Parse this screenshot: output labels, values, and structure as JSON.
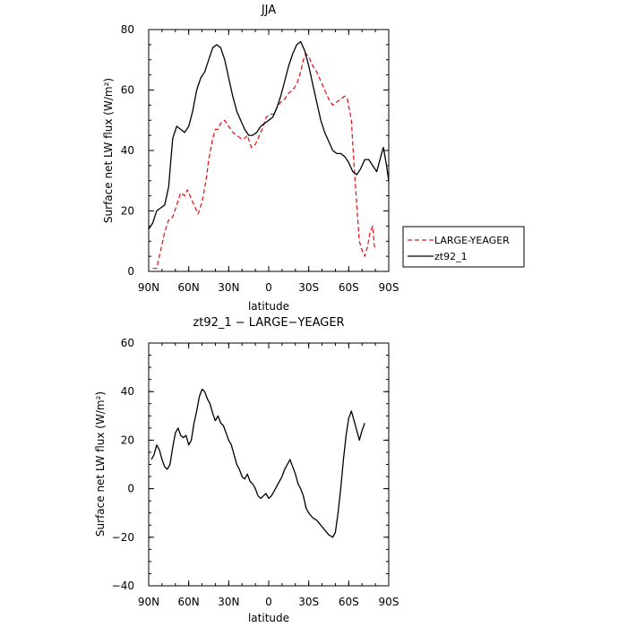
{
  "chart_data": [
    {
      "type": "line",
      "title": "JJA",
      "xlabel": "latitude",
      "ylabel": "Surface net LW flux (W/m²)",
      "xlim": [
        90,
        -90
      ],
      "ylim": [
        0,
        80
      ],
      "xtick_values": [
        90,
        60,
        30,
        0,
        -30,
        -60,
        -90
      ],
      "xtick_labels": [
        "90N",
        "60N",
        "30N",
        "0",
        "30S",
        "60S",
        "90S"
      ],
      "ytick_values": [
        0,
        20,
        40,
        60,
        80
      ],
      "ytick_labels": [
        "0",
        "20",
        "40",
        "60",
        "80"
      ],
      "legend_position": "outside-right",
      "series": [
        {
          "name": "LARGE-YEAGER",
          "color": "#e8191c",
          "style": "dashed",
          "points": [
            [
              87,
              1
            ],
            [
              84,
              1
            ],
            [
              81,
              7
            ],
            [
              78,
              13
            ],
            [
              75,
              17
            ],
            [
              72,
              18
            ],
            [
              69,
              22
            ],
            [
              66,
              26
            ],
            [
              63,
              25
            ],
            [
              61,
              27
            ],
            [
              58,
              24
            ],
            [
              55,
              21
            ],
            [
              53,
              19
            ],
            [
              50,
              23
            ],
            [
              47,
              30
            ],
            [
              45,
              37
            ],
            [
              42,
              44
            ],
            [
              40,
              47
            ],
            [
              38,
              47
            ],
            [
              36,
              49
            ],
            [
              33,
              50
            ],
            [
              30,
              48
            ],
            [
              27,
              46
            ],
            [
              24,
              45
            ],
            [
              21,
              44
            ],
            [
              18,
              44
            ],
            [
              16,
              45
            ],
            [
              13,
              41
            ],
            [
              10,
              42
            ],
            [
              7,
              45
            ],
            [
              4,
              48
            ],
            [
              2,
              51
            ],
            [
              -1,
              52
            ],
            [
              -4,
              52
            ],
            [
              -6,
              54
            ],
            [
              -9,
              56
            ],
            [
              -12,
              57
            ],
            [
              -15,
              59
            ],
            [
              -18,
              60
            ],
            [
              -21,
              62
            ],
            [
              -24,
              66
            ],
            [
              -26,
              70
            ],
            [
              -28,
              72
            ],
            [
              -30,
              71
            ],
            [
              -33,
              68
            ],
            [
              -36,
              66
            ],
            [
              -39,
              63
            ],
            [
              -42,
              60
            ],
            [
              -45,
              57
            ],
            [
              -48,
              55
            ],
            [
              -51,
              56
            ],
            [
              -54,
              57
            ],
            [
              -57,
              58
            ],
            [
              -59,
              57
            ],
            [
              -62,
              50
            ],
            [
              -64,
              35
            ],
            [
              -66,
              22
            ],
            [
              -68,
              10
            ],
            [
              -70,
              7
            ],
            [
              -72,
              5
            ],
            [
              -74,
              8
            ],
            [
              -76,
              13
            ],
            [
              -78,
              15
            ],
            [
              -79,
              9
            ],
            [
              -80,
              7
            ]
          ]
        },
        {
          "name": "zt92_1",
          "color": "#000000",
          "style": "solid",
          "points": [
            [
              90,
              14
            ],
            [
              87,
              16
            ],
            [
              84,
              20
            ],
            [
              81,
              21
            ],
            [
              78,
              22
            ],
            [
              75,
              28
            ],
            [
              72,
              44
            ],
            [
              69,
              48
            ],
            [
              66,
              47
            ],
            [
              63,
              46
            ],
            [
              60,
              48
            ],
            [
              57,
              53
            ],
            [
              54,
              60
            ],
            [
              51,
              64
            ],
            [
              48,
              66
            ],
            [
              45,
              70
            ],
            [
              42,
              74
            ],
            [
              39,
              75
            ],
            [
              36,
              74
            ],
            [
              33,
              70
            ],
            [
              30,
              64
            ],
            [
              27,
              58
            ],
            [
              24,
              53
            ],
            [
              21,
              50
            ],
            [
              18,
              47
            ],
            [
              15,
              45
            ],
            [
              12,
              45
            ],
            [
              9,
              46
            ],
            [
              6,
              48
            ],
            [
              3,
              49
            ],
            [
              0,
              50
            ],
            [
              -3,
              51
            ],
            [
              -6,
              54
            ],
            [
              -9,
              58
            ],
            [
              -12,
              63
            ],
            [
              -15,
              68
            ],
            [
              -18,
              72
            ],
            [
              -21,
              75
            ],
            [
              -24,
              76
            ],
            [
              -27,
              73
            ],
            [
              -30,
              68
            ],
            [
              -33,
              62
            ],
            [
              -36,
              56
            ],
            [
              -39,
              50
            ],
            [
              -42,
              46
            ],
            [
              -45,
              43
            ],
            [
              -48,
              40
            ],
            [
              -51,
              39
            ],
            [
              -54,
              39
            ],
            [
              -57,
              38
            ],
            [
              -60,
              36
            ],
            [
              -63,
              33
            ],
            [
              -66,
              32
            ],
            [
              -69,
              34
            ],
            [
              -72,
              37
            ],
            [
              -75,
              37
            ],
            [
              -78,
              35
            ],
            [
              -81,
              33
            ],
            [
              -84,
              38
            ],
            [
              -86,
              41
            ],
            [
              -88,
              36
            ],
            [
              -90,
              30
            ]
          ]
        }
      ]
    },
    {
      "type": "line",
      "title": "zt92_1 − LARGE−YEAGER",
      "xlabel": "latitude",
      "ylabel": "Surface net LW flux (W/m²)",
      "xlim": [
        90,
        -90
      ],
      "ylim": [
        -40,
        60
      ],
      "xtick_values": [
        90,
        60,
        30,
        0,
        -30,
        -60,
        -90
      ],
      "xtick_labels": [
        "90N",
        "60N",
        "30N",
        "0",
        "30S",
        "60S",
        "90S"
      ],
      "ytick_values": [
        -40,
        -20,
        0,
        20,
        40,
        60
      ],
      "ytick_labels": [
        "−40",
        "−20",
        "0",
        "20",
        "40",
        "60"
      ],
      "series": [
        {
          "color": "#000000",
          "style": "solid",
          "points": [
            [
              88,
              12
            ],
            [
              86,
              14
            ],
            [
              84,
              18
            ],
            [
              82,
              16
            ],
            [
              80,
              12
            ],
            [
              78,
              9
            ],
            [
              76,
              8
            ],
            [
              74,
              10
            ],
            [
              72,
              17
            ],
            [
              70,
              23
            ],
            [
              68,
              25
            ],
            [
              66,
              22
            ],
            [
              64,
              21
            ],
            [
              62,
              22
            ],
            [
              60,
              18
            ],
            [
              58,
              20
            ],
            [
              56,
              27
            ],
            [
              54,
              32
            ],
            [
              52,
              38
            ],
            [
              50,
              41
            ],
            [
              48,
              40
            ],
            [
              46,
              37
            ],
            [
              44,
              35
            ],
            [
              42,
              31
            ],
            [
              40,
              28
            ],
            [
              38,
              30
            ],
            [
              36,
              27
            ],
            [
              34,
              26
            ],
            [
              32,
              23
            ],
            [
              30,
              20
            ],
            [
              28,
              18
            ],
            [
              26,
              14
            ],
            [
              24,
              10
            ],
            [
              22,
              8
            ],
            [
              20,
              5
            ],
            [
              18,
              4
            ],
            [
              16,
              6
            ],
            [
              14,
              3
            ],
            [
              12,
              2
            ],
            [
              10,
              0
            ],
            [
              8,
              -3
            ],
            [
              6,
              -4
            ],
            [
              4,
              -3
            ],
            [
              2,
              -2
            ],
            [
              0,
              -4
            ],
            [
              -2,
              -3
            ],
            [
              -4,
              -1
            ],
            [
              -6,
              1
            ],
            [
              -8,
              3
            ],
            [
              -10,
              5
            ],
            [
              -12,
              8
            ],
            [
              -14,
              10
            ],
            [
              -16,
              12
            ],
            [
              -18,
              9
            ],
            [
              -20,
              6
            ],
            [
              -22,
              2
            ],
            [
              -24,
              0
            ],
            [
              -26,
              -3
            ],
            [
              -28,
              -8
            ],
            [
              -30,
              -10
            ],
            [
              -33,
              -12
            ],
            [
              -36,
              -13
            ],
            [
              -39,
              -15
            ],
            [
              -42,
              -17
            ],
            [
              -45,
              -19
            ],
            [
              -48,
              -20
            ],
            [
              -50,
              -18
            ],
            [
              -52,
              -10
            ],
            [
              -54,
              0
            ],
            [
              -56,
              12
            ],
            [
              -58,
              22
            ],
            [
              -60,
              29
            ],
            [
              -62,
              32
            ],
            [
              -64,
              28
            ],
            [
              -66,
              24
            ],
            [
              -68,
              20
            ],
            [
              -70,
              24
            ],
            [
              -72,
              27
            ]
          ]
        }
      ]
    }
  ]
}
